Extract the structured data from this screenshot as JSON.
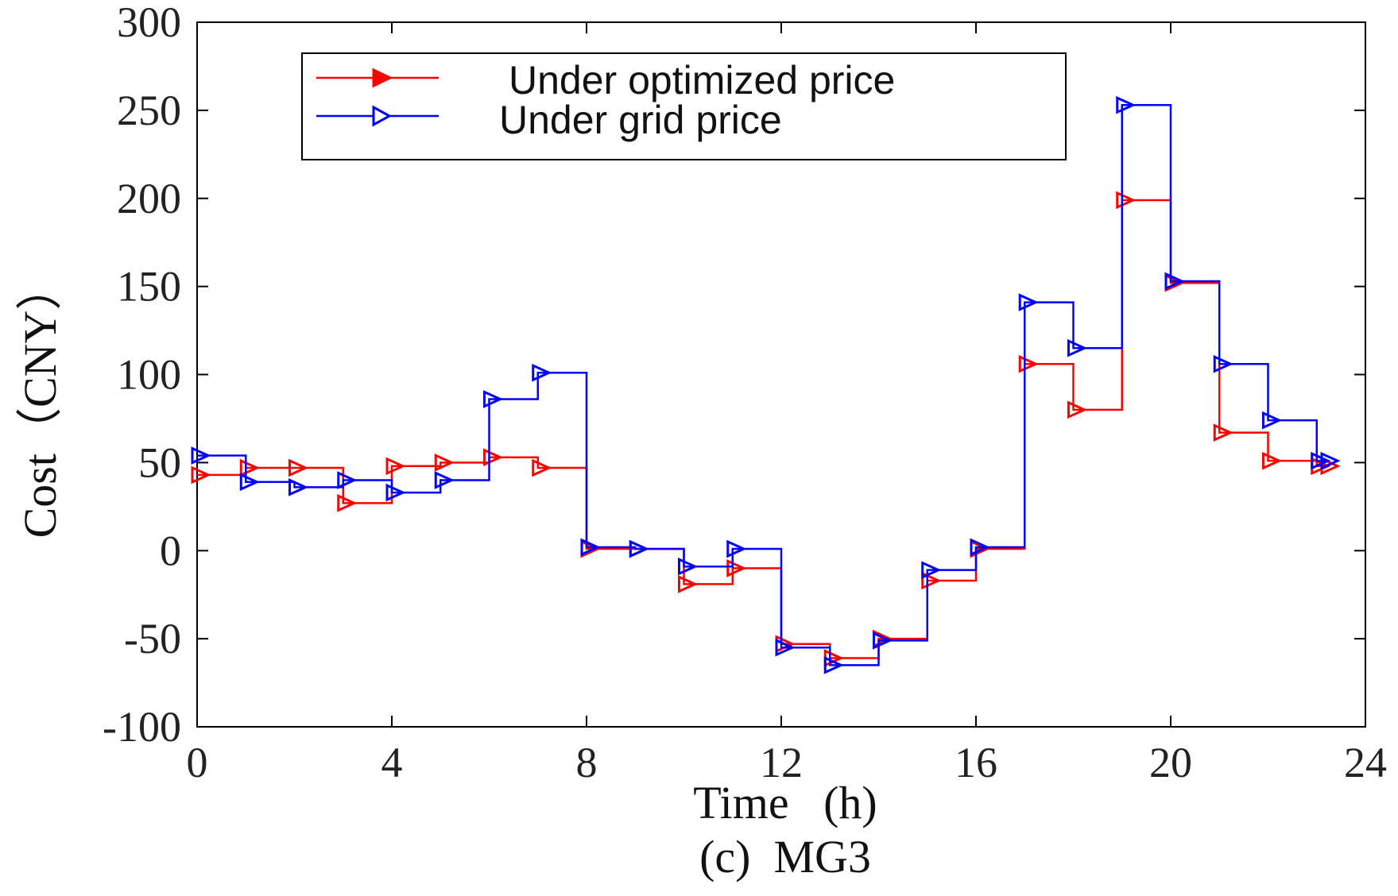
{
  "chart_data": {
    "type": "line",
    "step": "post",
    "title": "(c)  MG3",
    "xlabel": "Time   (h)",
    "ylabel": "Cost（CNY）",
    "xlim": [
      0,
      24
    ],
    "ylim": [
      -100,
      300
    ],
    "xticks": [
      0,
      4,
      8,
      12,
      16,
      20,
      24
    ],
    "yticks": [
      -100,
      -50,
      0,
      50,
      100,
      150,
      200,
      250,
      300
    ],
    "legend_position": "top-center",
    "x": [
      0,
      1,
      2,
      3,
      4,
      5,
      6,
      7,
      8,
      9,
      10,
      11,
      12,
      13,
      14,
      15,
      16,
      17,
      18,
      19,
      20,
      21,
      22,
      23,
      24
    ],
    "series": [
      {
        "name": "Under optimized price",
        "color": "#ff0000",
        "marker": "right-triangle",
        "values": [
          43,
          47,
          47,
          27,
          48,
          50,
          53,
          47,
          1,
          1,
          -19,
          -10,
          -53,
          -61,
          -50,
          -17,
          1,
          106,
          80,
          199,
          152,
          67,
          51,
          48,
          48
        ]
      },
      {
        "name": "Under grid price",
        "color": "#0000ff",
        "marker": "right-triangle",
        "values": [
          54,
          39,
          36,
          40,
          33,
          40,
          86,
          101,
          2,
          1,
          -9,
          1,
          -55,
          -65,
          -51,
          -11,
          2,
          141,
          115,
          253,
          153,
          106,
          74,
          51,
          51
        ]
      }
    ]
  }
}
